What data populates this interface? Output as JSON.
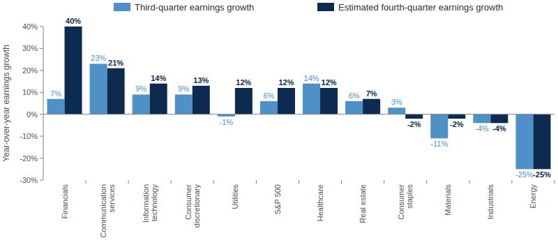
{
  "chart_data": {
    "type": "bar",
    "y_label": "Year-over-year earnings growth",
    "categories": [
      "Financials",
      "Communication services",
      "Information technology",
      "Consumer discretionary",
      "Utilities",
      "S&P 500",
      "Healthcare",
      "Real estate",
      "Consumer staples",
      "Materials",
      "Industrials",
      "Energy"
    ],
    "series": [
      {
        "name": "Third-quarter earnings growth",
        "color": "#4f91c6",
        "values": [
          7,
          23,
          9,
          9,
          -1,
          6,
          14,
          6,
          3,
          -11,
          -4,
          -25
        ],
        "value_labels": [
          "7%",
          "23%",
          "9%",
          "9%",
          "-1%",
          "6%",
          "14%",
          "6%",
          "3%",
          "-11%",
          "-4%",
          "-25%"
        ]
      },
      {
        "name": "Estimated fourth-quarter earnings growth",
        "color": "#0d2b50",
        "values": [
          40,
          21,
          14,
          13,
          12,
          12,
          12,
          7,
          -2,
          -2,
          -4,
          -25
        ],
        "value_labels": [
          "40%",
          "21%",
          "14%",
          "13%",
          "12%",
          "12%",
          "12%",
          "7%",
          "-2%",
          "-2%",
          "-4%",
          "-25%"
        ]
      }
    ],
    "ylim": [
      -30,
      40
    ],
    "yticks": [
      {
        "value": -30,
        "label": "-30%"
      },
      {
        "value": -20,
        "label": "-20%"
      },
      {
        "value": -10,
        "label": "-10%"
      },
      {
        "value": 0,
        "label": "0%"
      },
      {
        "value": 10,
        "label": "10%"
      },
      {
        "value": 20,
        "label": "20%"
      },
      {
        "value": 30,
        "label": "30%"
      },
      {
        "value": 40,
        "label": "40%"
      }
    ],
    "grid": false,
    "legend": "top",
    "data_labels": true
  }
}
